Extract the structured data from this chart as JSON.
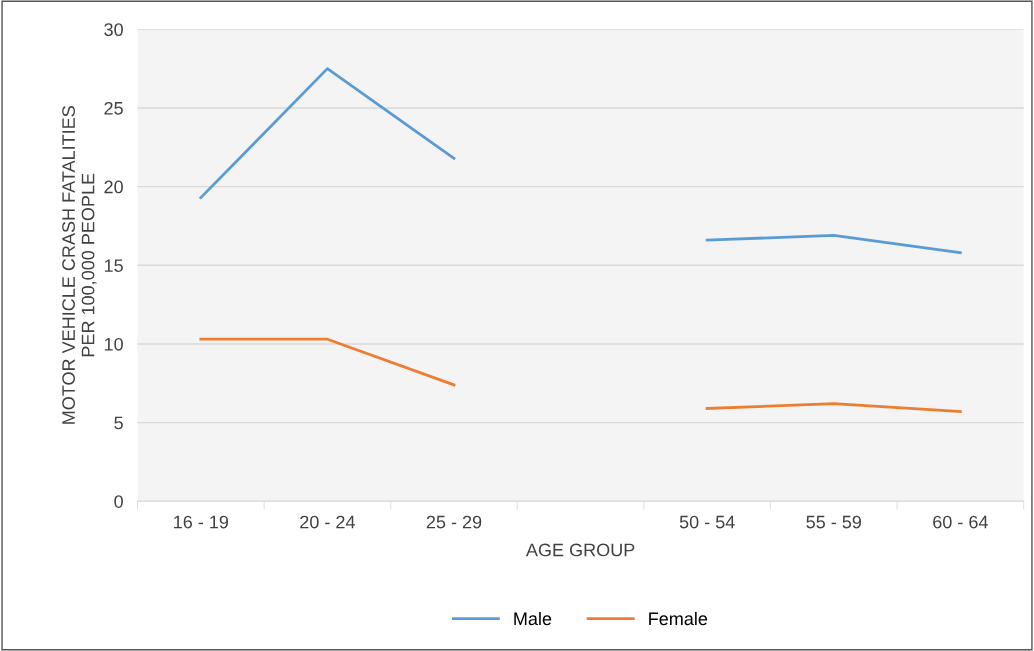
{
  "chart_data": {
    "type": "line",
    "xlabel": "AGE GROUP",
    "ylabel": "MOTOR VEHICLE CRASH FATALITIES\nPER 100,000 PEOPLE",
    "categories": [
      "16 - 19",
      "20 - 24",
      "25 - 29",
      null,
      "50 - 54",
      "55 - 59",
      "60 - 64"
    ],
    "series": [
      {
        "name": "Male",
        "color": "#5b9bd5",
        "values": [
          19.3,
          27.5,
          21.8,
          null,
          16.6,
          16.9,
          15.8
        ]
      },
      {
        "name": "Female",
        "color": "#ed7d31",
        "values": [
          10.3,
          10.3,
          7.4,
          null,
          5.9,
          6.2,
          5.7
        ]
      }
    ],
    "ylim": [
      0,
      30
    ],
    "yticks": [
      0,
      5,
      10,
      15,
      20,
      25,
      30
    ],
    "grid": "y",
    "legend": "bottom",
    "marker": "none",
    "line_style": "solid"
  }
}
